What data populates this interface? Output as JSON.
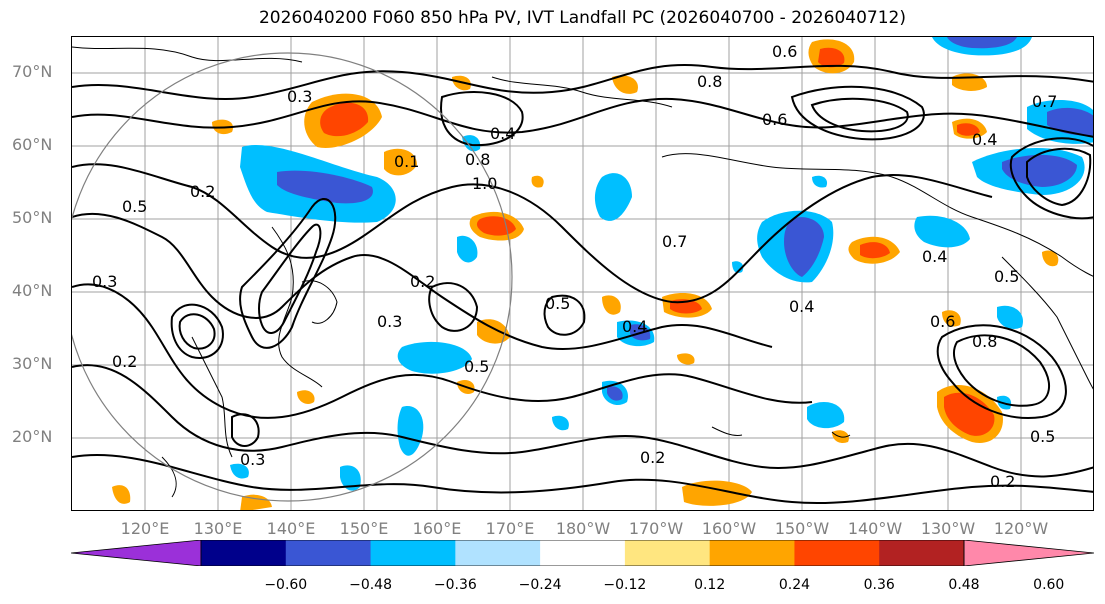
{
  "title": "2026040200 F060 850 hPa PV, IVT Landfall PC (2026040700 - 2026040712)",
  "lat_labels": [
    "70°N",
    "60°N",
    "50°N",
    "40°N",
    "30°N",
    "20°N"
  ],
  "lon_labels": [
    "120°E",
    "130°E",
    "140°E",
    "150°E",
    "160°E",
    "170°E",
    "180°W",
    "170°W",
    "160°W",
    "150°W",
    "140°W",
    "130°W",
    "120°W"
  ],
  "colorbar": {
    "ticks": [
      "−0.60",
      "−0.48",
      "−0.36",
      "−0.24",
      "−0.12",
      "0.12",
      "0.24",
      "0.36",
      "0.48",
      "0.60"
    ],
    "colors": [
      "#9b30d9",
      "#00008b",
      "#3a56d4",
      "#00bfff",
      "#b0e2ff",
      "#ffffff",
      "#ffe680",
      "#ffa500",
      "#ff4500",
      "#b22222",
      "#ff88aa"
    ]
  },
  "contour_labels": [
    "0.6",
    "0.8",
    "0.3",
    "0.4",
    "0.2",
    "0.5",
    "0.7",
    "0.1",
    "1.0",
    "0.6",
    "0.4",
    "0.8",
    "0.2",
    "0.5",
    "0.3",
    "0.5",
    "0.4",
    "0.6",
    "0.8",
    "0.3",
    "0.2",
    "0.2",
    "0.5",
    "0.4",
    "0.7",
    "0.5",
    "0.4",
    "0.2",
    "0.3"
  ],
  "colors": {
    "contour": "#000000",
    "grid": "#a0a0a0",
    "coast": "#000000",
    "circle": "#808080"
  }
}
